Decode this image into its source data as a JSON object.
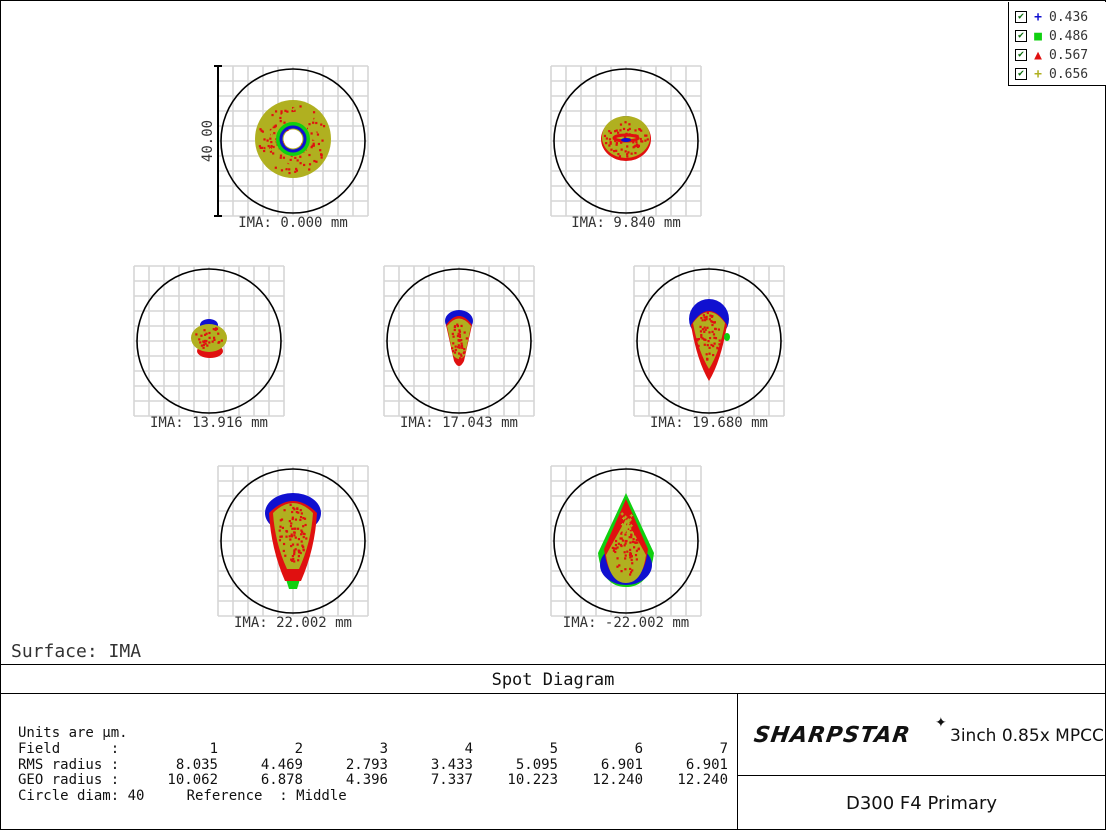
{
  "legend": {
    "items": [
      {
        "label": "0.436",
        "marker": "+",
        "color": "#1010d0",
        "checked": true
      },
      {
        "label": "0.486",
        "marker": "■",
        "color": "#10d010",
        "checked": true
      },
      {
        "label": "0.567",
        "marker": "▲",
        "color": "#e01010",
        "checked": true
      },
      {
        "label": "0.656",
        "marker": "+",
        "color": "#b0b020",
        "checked": true
      }
    ]
  },
  "scale_label": "40.00",
  "chart_data": {
    "type": "scatter",
    "subtype": "spot_diagram",
    "title": "Spot Diagram",
    "units": "µm",
    "circle_diameter": 40,
    "fields": [
      {
        "field": 1,
        "label": "IMA: 0.000 mm"
      },
      {
        "field": 2,
        "label": "IMA: 9.840 mm"
      },
      {
        "field": 3,
        "label": "IMA: 13.916 mm"
      },
      {
        "field": 4,
        "label": "IMA: 17.043 mm"
      },
      {
        "field": 5,
        "label": "IMA: 19.680 mm"
      },
      {
        "field": 6,
        "label": "IMA: 22.002 mm"
      },
      {
        "field": 7,
        "label": "IMA: -22.002 mm"
      }
    ],
    "series": [
      {
        "name": "0.436",
        "color": "#1010d0"
      },
      {
        "name": "0.486",
        "color": "#10d010"
      },
      {
        "name": "0.567",
        "color": "#e01010"
      },
      {
        "name": "0.656",
        "color": "#b0b020"
      }
    ],
    "rms_radius": [
      8.035,
      4.469,
      2.793,
      3.433,
      5.095,
      6.901,
      6.901
    ],
    "geo_radius": [
      10.062,
      6.878,
      4.396,
      7.337,
      10.223,
      12.24,
      12.24
    ]
  },
  "surface_label": "Surface: IMA",
  "title": "Spot Diagram",
  "info": {
    "units_line": "Units are µm.",
    "field_label": "Field      :",
    "rms_label": "RMS radius :",
    "geo_label": "GEO radius :",
    "field_values": [
      "1",
      "2",
      "3",
      "4",
      "5",
      "6",
      "7"
    ],
    "rms_values": [
      "8.035",
      "4.469",
      "2.793",
      "3.433",
      "5.095",
      "6.901",
      "6.901"
    ],
    "geo_values": [
      "10.062",
      "6.878",
      "4.396",
      "7.337",
      "10.223",
      "12.240",
      "12.240"
    ],
    "circle_line": "Circle diam: 40     Reference  : Middle"
  },
  "brand": {
    "logo": "SHARPSTAR",
    "subtitle": "3inch 0.85x MPCC"
  },
  "config": "D300  F4 Primary"
}
